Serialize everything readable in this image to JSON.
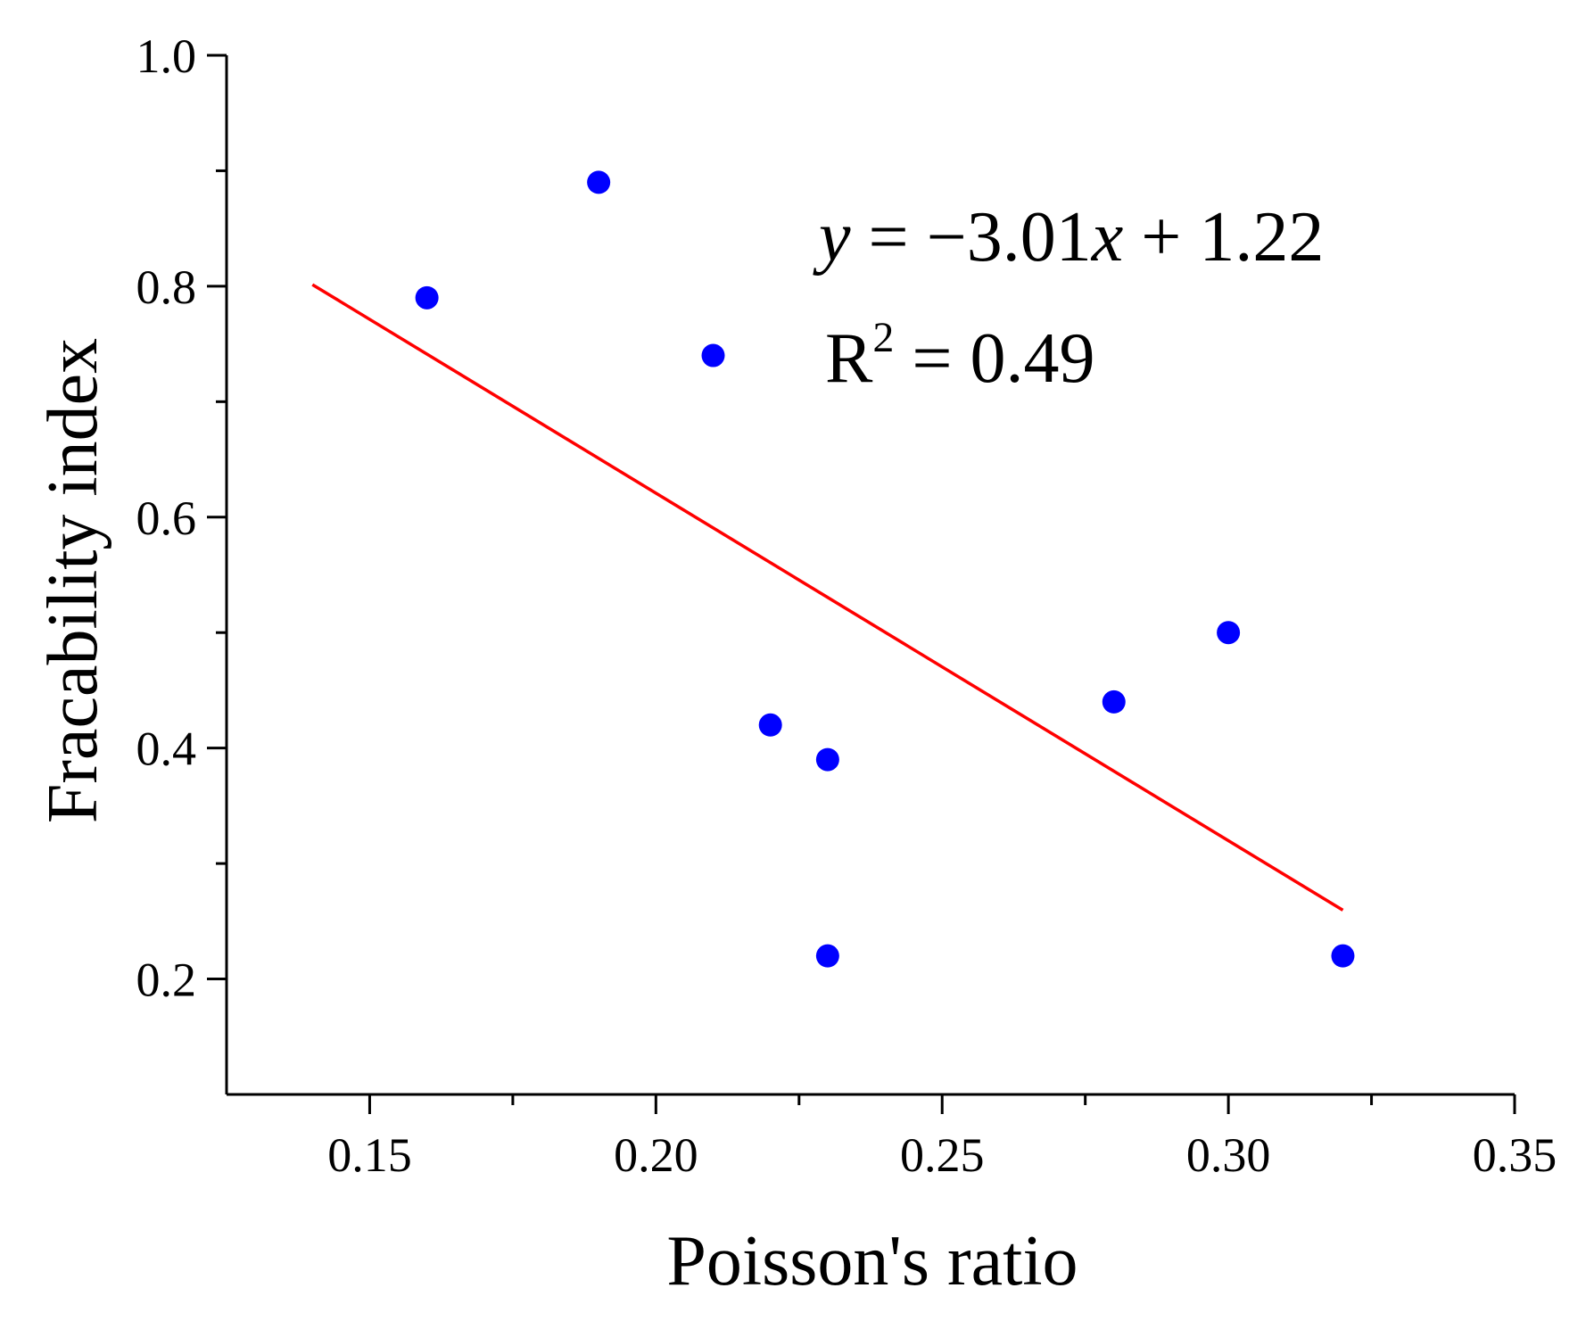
{
  "chart_data": {
    "type": "scatter",
    "title": "",
    "xlabel": "Poisson's ratio",
    "ylabel": "Fracability index",
    "xlim": [
      0.125,
      0.35
    ],
    "ylim": [
      0.1,
      1.0
    ],
    "x_ticks": [
      0.15,
      0.2,
      0.25,
      0.3,
      0.35
    ],
    "x_tick_labels": [
      "0.15",
      "0.20",
      "0.25",
      "0.30",
      "0.35"
    ],
    "x_minor_ticks": [
      0.175,
      0.225,
      0.275,
      0.325
    ],
    "y_ticks": [
      0.2,
      0.4,
      0.6,
      0.8,
      1.0
    ],
    "y_tick_labels": [
      "0.2",
      "0.4",
      "0.6",
      "0.8",
      "1.0"
    ],
    "y_minor_ticks": [
      0.3,
      0.5,
      0.7,
      0.9
    ],
    "grid": false,
    "series": [
      {
        "name": "data",
        "kind": "scatter",
        "color": "#0000ff",
        "points": [
          {
            "x": 0.16,
            "y": 0.79
          },
          {
            "x": 0.19,
            "y": 0.89
          },
          {
            "x": 0.21,
            "y": 0.74
          },
          {
            "x": 0.22,
            "y": 0.42
          },
          {
            "x": 0.23,
            "y": 0.39
          },
          {
            "x": 0.23,
            "y": 0.22
          },
          {
            "x": 0.28,
            "y": 0.44
          },
          {
            "x": 0.3,
            "y": 0.5
          },
          {
            "x": 0.32,
            "y": 0.22
          }
        ]
      },
      {
        "name": "fit",
        "kind": "line",
        "color": "#ff0000",
        "points": [
          {
            "x": 0.14,
            "y": 0.8014
          },
          {
            "x": 0.32,
            "y": 0.2596
          }
        ]
      }
    ],
    "annotations": {
      "equation": {
        "y_var": "y",
        "eq_rest": " = −3.01",
        "x_var": "x",
        "tail": " + 1.22"
      },
      "r_squared": {
        "prefix": "R",
        "sup": "2",
        "suffix": " = 0.49"
      }
    }
  }
}
